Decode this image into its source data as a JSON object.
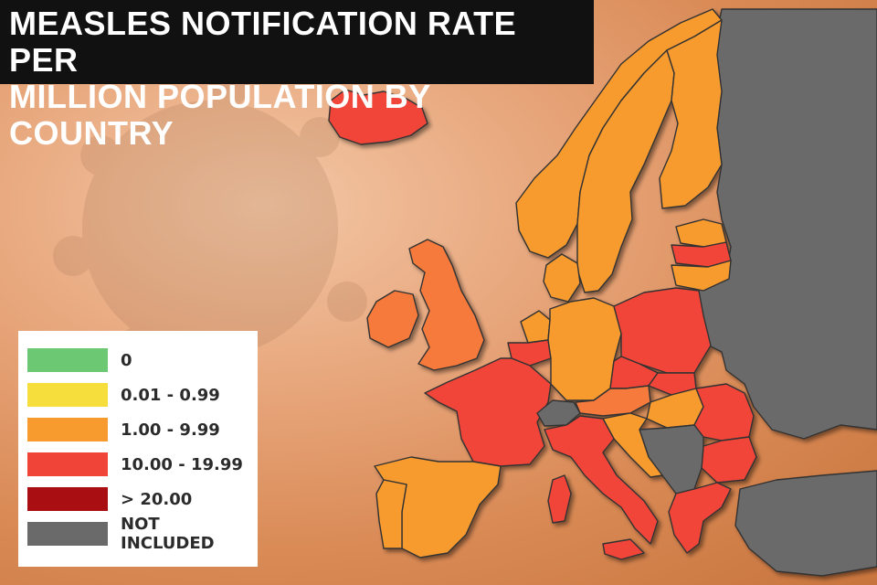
{
  "title_line_1": "MEASLES NOTIFICATION RATE PER",
  "title_line_2": "MILLION POPULATION BY COUNTRY",
  "legend": [
    {
      "label": "0",
      "color": "#6cc872"
    },
    {
      "label": "0.01 - 0.99",
      "color": "#f6de3c"
    },
    {
      "label": "1.00 - 9.99",
      "color": "#f79b2f"
    },
    {
      "label": "10.00 - 19.99",
      "color": "#f04438"
    },
    {
      "label": "> 20.00",
      "color": "#a80e12"
    },
    {
      "label": "NOT INCLUDED",
      "color": "#6a6a6a"
    }
  ],
  "colors": {
    "sea": "#d98a55",
    "background_light": "#f3c7a6",
    "border": "#333333",
    "title_bar": "#111111"
  },
  "regions": [
    {
      "id": "iceland",
      "category": "10.00 - 19.99"
    },
    {
      "id": "norway",
      "category": "1.00 - 9.99"
    },
    {
      "id": "sweden",
      "category": "1.00 - 9.99"
    },
    {
      "id": "finland",
      "category": "1.00 - 9.99"
    },
    {
      "id": "ireland",
      "category": "1.00 - 9.99"
    },
    {
      "id": "united-kingdom",
      "category": "1.00 - 9.99"
    },
    {
      "id": "estonia",
      "category": "1.00 - 9.99"
    },
    {
      "id": "latvia",
      "category": "10.00 - 19.99"
    },
    {
      "id": "lithuania",
      "category": "1.00 - 9.99"
    },
    {
      "id": "denmark",
      "category": "1.00 - 9.99"
    },
    {
      "id": "netherlands",
      "category": "1.00 - 9.99"
    },
    {
      "id": "belgium",
      "category": "10.00 - 19.99"
    },
    {
      "id": "germany",
      "category": "1.00 - 9.99"
    },
    {
      "id": "poland",
      "category": "10.00 - 19.99"
    },
    {
      "id": "czechia",
      "category": "10.00 - 19.99"
    },
    {
      "id": "slovakia",
      "category": "10.00 - 19.99"
    },
    {
      "id": "austria",
      "category": "1.00 - 9.99"
    },
    {
      "id": "hungary",
      "category": "1.00 - 9.99"
    },
    {
      "id": "france",
      "category": "10.00 - 19.99"
    },
    {
      "id": "switzerland",
      "category": "NOT INCLUDED"
    },
    {
      "id": "italy",
      "category": "10.00 - 19.99"
    },
    {
      "id": "spain",
      "category": "1.00 - 9.99"
    },
    {
      "id": "portugal",
      "category": "1.00 - 9.99"
    },
    {
      "id": "slovenia",
      "category": "1.00 - 9.99"
    },
    {
      "id": "croatia",
      "category": "1.00 - 9.99"
    },
    {
      "id": "romania",
      "category": "10.00 - 19.99"
    },
    {
      "id": "bulgaria",
      "category": "10.00 - 19.99"
    },
    {
      "id": "greece",
      "category": "10.00 - 19.99"
    },
    {
      "id": "balkans",
      "category": "NOT INCLUDED"
    },
    {
      "id": "eastern-europe",
      "category": "NOT INCLUDED"
    },
    {
      "id": "turkey",
      "category": "NOT INCLUDED"
    }
  ]
}
